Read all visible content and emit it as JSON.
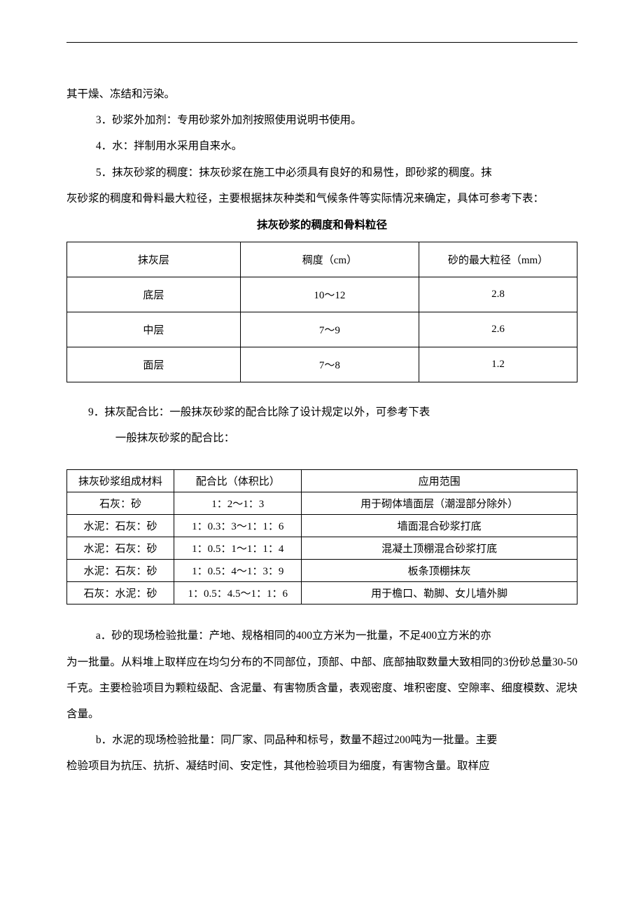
{
  "paragraphs": {
    "p0": "其干燥、冻结和污染。",
    "p1": "3．砂浆外加剂：专用砂浆外加剂按照使用说明书使用。",
    "p2": "4．水：拌制用水采用自来水。",
    "p3a": "5．抹灰砂浆的稠度：抹灰砂浆在施工中必须具有良好的和易性，即砂浆的稠度。抹",
    "p3b": "灰砂浆的稠度和骨料最大粒径，主要根据抹灰种类和气候条件等实际情况来确定，具体可参考下表：",
    "p4": "9．抹灰配合比：一般抹灰砂浆的配合比除了设计规定以外，可参考下表",
    "p5": "一般抹灰砂浆的配合比：",
    "p6a": "a．砂的现场检验批量：产地、规格相同的400立方米为一批量，不足400立方米的亦",
    "p6b": "为一批量。从料堆上取样应在均匀分布的不同部位，顶部、中部、底部抽取数量大致相同的3份砂总量30-50千克。主要检验项目为颗粒级配、含泥量、有害物质含量，表观密度、堆积密度、空隙率、细度模数、泥块含量。",
    "p7a": "b．水泥的现场检验批量：同厂家、同品种和标号，数量不超过200吨为一批量。主要",
    "p7b": "检验项目为抗压、抗折、凝结时间、安定性，其他检验项目为细度，有害物含量。取样应"
  },
  "table1": {
    "title": "抹灰砂浆的稠度和骨料粒径",
    "columns": [
      "抹灰层",
      "稠度（cm）",
      "砂的最大粒径（mm）"
    ],
    "col_widths": [
      "34%",
      "35%",
      "31%"
    ],
    "rows": [
      [
        "底层",
        "10～12",
        "2.8"
      ],
      [
        "中层",
        "7～9",
        "2.6"
      ],
      [
        "面层",
        "7～8",
        "1.2"
      ]
    ],
    "border_color": "#000000",
    "cell_padding": "14px 4px",
    "font_size": 15
  },
  "table2": {
    "columns": [
      "抹灰砂浆组成材料",
      "配合比（体积比）",
      "应用范围"
    ],
    "col_widths": [
      "21%",
      "25%",
      "54%"
    ],
    "rows": [
      [
        "石灰：砂",
        "1：2～1：3",
        "用于砌体墙面层（潮湿部分除外）"
      ],
      [
        "水泥：石灰：砂",
        "1：0.3：3～1：1：6",
        "墙面混合砂浆打底"
      ],
      [
        "水泥：石灰：砂",
        "1：0.5：1～1：1：4",
        "混凝土顶棚混合砂浆打底"
      ],
      [
        "水泥：石灰：砂",
        "1：0.5：4～1：3：9",
        "板条顶棚抹灰"
      ],
      [
        "石灰：水泥：砂",
        "1：0.5：4.5～1：1：6",
        "用于檐口、勒脚、女儿墙外脚"
      ]
    ],
    "border_color": "#000000",
    "cell_padding": "5px 4px",
    "font_size": 15
  },
  "page_style": {
    "background_color": "#ffffff",
    "text_color": "#000000",
    "font_family": "SimSun",
    "body_font_size": 15.5,
    "line_height": 2.4,
    "hr_color": "#000000"
  }
}
